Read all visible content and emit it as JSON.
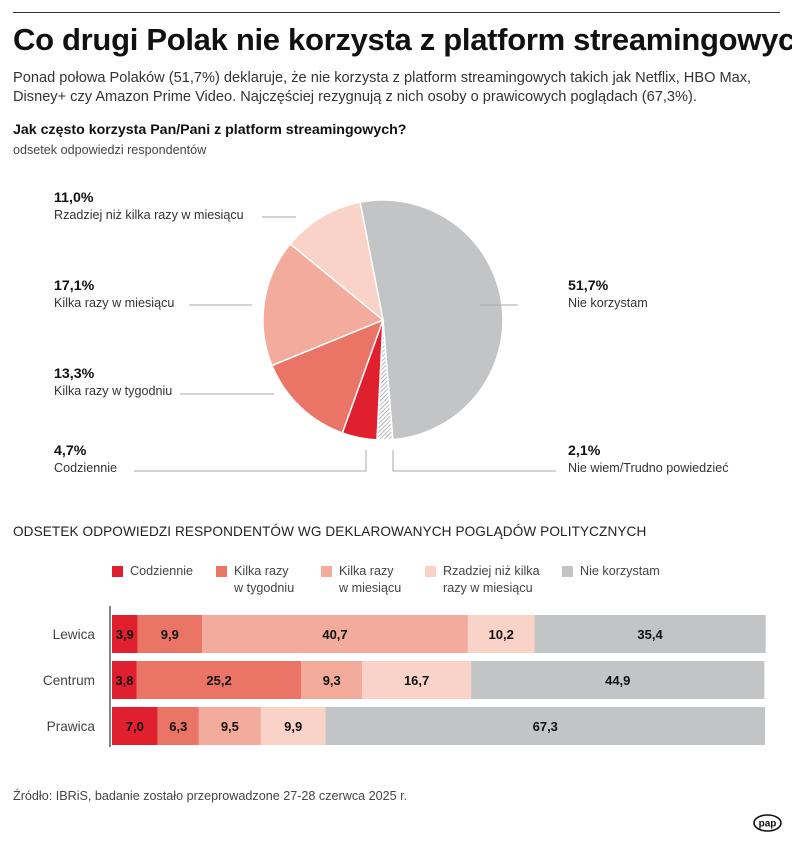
{
  "title": "Co drugi Polak nie korzysta z platform streamingowych",
  "lead": "Ponad połowa Polaków (51,7%) deklaruje, że nie korzysta z platform streamingowych takich jak Netflix, HBO Max, Disney+ czy Amazon Prime Video. Najczęściej rezygnują z nich osoby o prawicowych poglądach (67,3%).",
  "pie_section": {
    "question": "Jak często korzysta Pan/Pani z platform streamingowych?",
    "subtitle": "odsetek odpowiedzi respondentów"
  },
  "bar_section": {
    "title": "ODSETEK ODPOWIEDZI RESPONDENTÓW WG DEKLAROWANYCH POGLĄDÓW POLITYCZNYCH"
  },
  "source": "Źródło: IBRiS, badanie zostało przeprowadzone 27-28 czerwca 2025 r.",
  "logo": {
    "text": "pap"
  },
  "colors": {
    "codziennie": "#e0202e",
    "tygodniu": "#ea7465",
    "miesiacu": "#f3ab9b",
    "rzadziej": "#f9d3c8",
    "nie": "#c3c4c6",
    "niewiem": "#8a8a8a",
    "leader": "#aaaaaa"
  },
  "chart_data": [
    {
      "type": "pie",
      "title": "Jak często korzysta Pan/Pani z platform streamingowych?",
      "subtitle": "odsetek odpowiedzi respondentów",
      "slices": [
        {
          "label": "Nie korzystam",
          "value": 51.7,
          "value_label": "51,7%",
          "color": "#c3c4c6"
        },
        {
          "label": "Nie wiem/Trudno powiedzieć",
          "value": 2.1,
          "value_label": "2,1%",
          "color": "hatched"
        },
        {
          "label": "Codziennie",
          "value": 4.7,
          "value_label": "4,7%",
          "color": "#e0202e"
        },
        {
          "label": "Kilka razy w tygodniu",
          "value": 13.3,
          "value_label": "13,3%",
          "color": "#ea7465"
        },
        {
          "label": "Kilka razy w miesiącu",
          "value": 17.1,
          "value_label": "17,1%",
          "color": "#f3ab9b"
        },
        {
          "label": "Rzadziej niż kilka razy w miesiącu",
          "value": 11.0,
          "value_label": "11,0%",
          "color": "#f9d3c8"
        }
      ]
    },
    {
      "type": "bar",
      "orientation": "horizontal",
      "stacked": true,
      "title": "ODSETEK ODPOWIEDZI RESPONDENTÓW WG DEKLAROWANYCH POGLĄDÓW POLITYCZNYCH",
      "categories": [
        "Lewica",
        "Centrum",
        "Prawica"
      ],
      "xlim": [
        0,
        100
      ],
      "legend_position": "top",
      "series": [
        {
          "name": "Codziennie",
          "legend_lines": [
            "Codziennie"
          ],
          "color": "#e0202e",
          "values": [
            3.9,
            3.8,
            7.0
          ],
          "labels": [
            "3,9",
            "3,8",
            "7,0"
          ]
        },
        {
          "name": "Kilka razy w tygodniu",
          "legend_lines": [
            "Kilka razy",
            "w tygodniu"
          ],
          "color": "#ea7465",
          "values": [
            9.9,
            25.2,
            6.3
          ],
          "labels": [
            "9,9",
            "25,2",
            "6,3"
          ]
        },
        {
          "name": "Kilka razy w miesiącu",
          "legend_lines": [
            "Kilka razy",
            "w miesiącu"
          ],
          "color": "#f3ab9b",
          "values": [
            40.7,
            9.3,
            9.5
          ],
          "labels": [
            "40,7",
            "9,3",
            "9,5"
          ]
        },
        {
          "name": "Rzadziej niż kilka razy w miesiącu",
          "legend_lines": [
            "Rzadziej niż kilka",
            "razy w miesiącu"
          ],
          "color": "#f9d3c8",
          "values": [
            10.2,
            16.7,
            9.9
          ],
          "labels": [
            "10,2",
            "16,7",
            "9,9"
          ]
        },
        {
          "name": "Nie korzystam",
          "legend_lines": [
            "Nie korzystam"
          ],
          "color": "#c3c4c6",
          "values": [
            35.4,
            44.9,
            67.3
          ],
          "labels": [
            "35,4",
            "44,9",
            "67,3"
          ]
        }
      ]
    }
  ]
}
